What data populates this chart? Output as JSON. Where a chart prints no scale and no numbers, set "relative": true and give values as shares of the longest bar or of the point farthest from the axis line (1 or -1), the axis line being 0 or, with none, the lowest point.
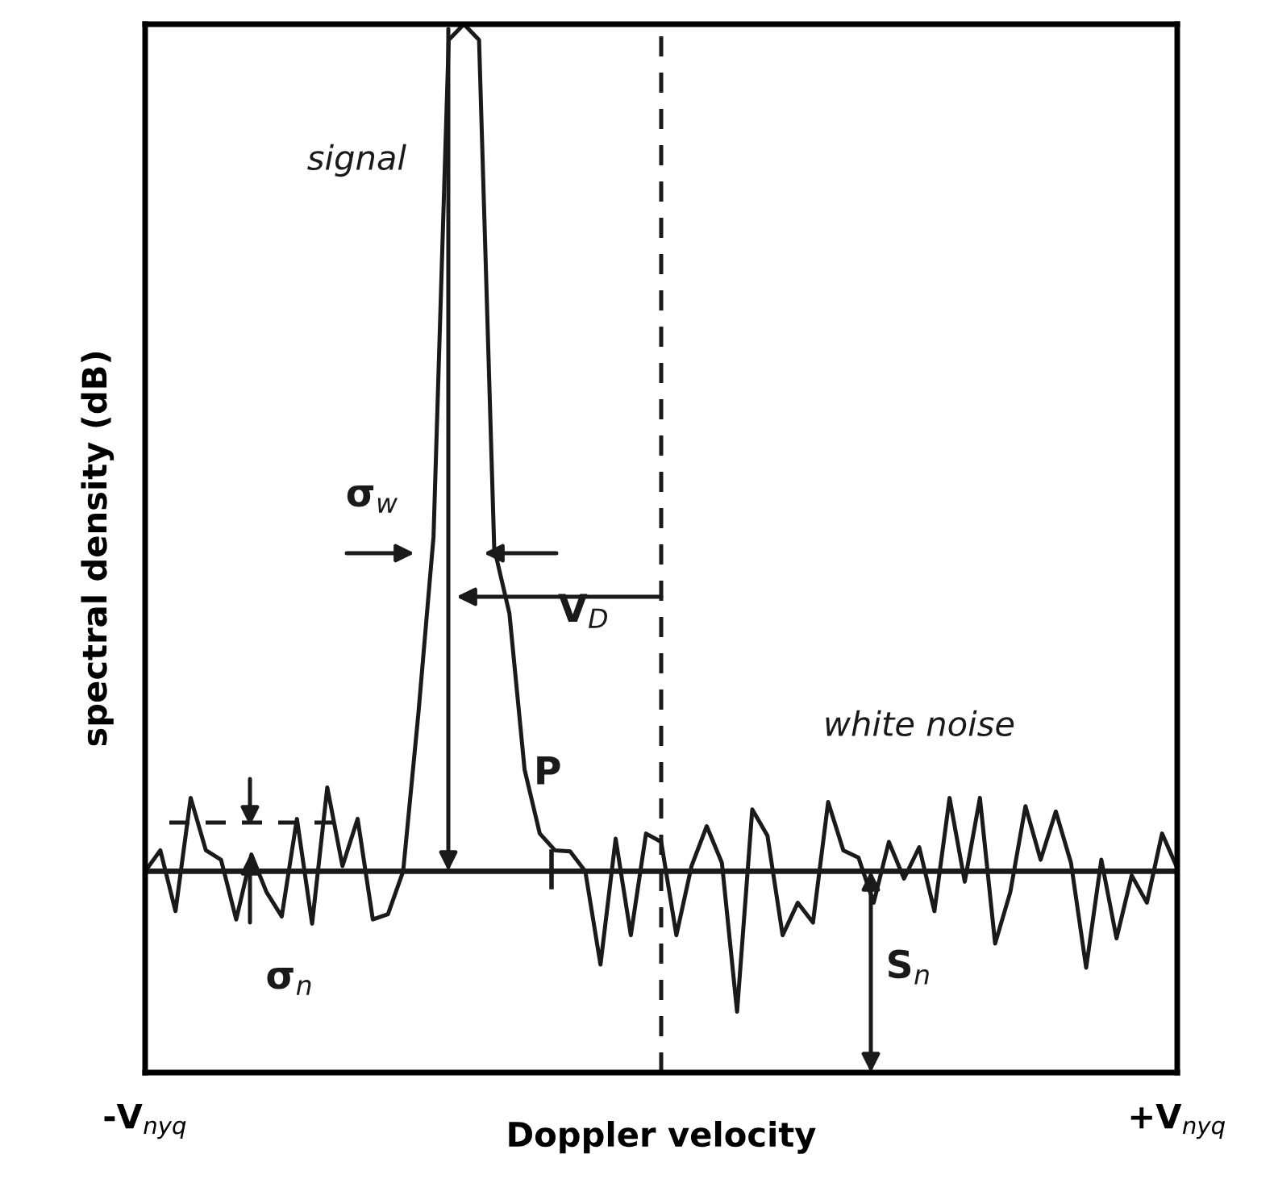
{
  "chart_data": {
    "type": "line",
    "relative": true,
    "xlabel": "Doppler velocity",
    "ylabel": "spectral density (dB)",
    "categories": [
      "-V$_{nyq}$",
      null,
      null,
      null,
      null,
      null,
      null,
      null,
      null,
      null,
      null,
      null,
      null,
      null,
      null,
      null,
      null,
      null,
      null,
      null,
      null,
      null,
      null,
      null,
      null,
      null,
      null,
      null,
      null,
      null,
      null,
      null,
      null,
      null,
      null,
      null,
      null,
      null,
      null,
      null,
      null,
      null,
      null,
      null,
      null,
      null,
      null,
      null,
      null,
      null,
      null,
      null,
      null,
      null,
      null,
      null,
      null,
      null,
      null,
      null,
      null,
      null,
      null,
      null,
      null,
      null,
      null,
      null,
      "+V$_{nyq}$"
    ],
    "legend": false,
    "marker": "none",
    "line_style": "solid",
    "series": [
      {
        "color": "#1a1a1a",
        "values": [
          0.192,
          0.212,
          0.154,
          0.262,
          0.212,
          0.203,
          0.146,
          0.208,
          0.172,
          0.149,
          0.242,
          0.142,
          0.272,
          0.197,
          0.242,
          0.146,
          0.151,
          0.192,
          0.342,
          0.511,
          0.985,
          1,
          0.985,
          0.5,
          0.438,
          0.289,
          0.228,
          0.212,
          0.211,
          0.192,
          0.103,
          0.223,
          0.131,
          0.228,
          0.22,
          0.131,
          0.197,
          0.235,
          0.2,
          0.058,
          0.251,
          0.226,
          0.131,
          0.162,
          0.143,
          0.258,
          0.212,
          0.205,
          0.162,
          0.22,
          0.185,
          0.215,
          0.154,
          0.262,
          0.182,
          0.262,
          0.123,
          0.172,
          0.254,
          0.203,
          0.249,
          0.2,
          0.1,
          0.203,
          0.128,
          0.188,
          0.162,
          0.228,
          0.195
        ]
      }
    ],
    "ref_lines": [
      {
        "axis": "y",
        "value": 0.192,
        "line_style": "solid",
        "color": "#1a1a1a"
      }
    ],
    "annotations": [
      "signal",
      "white noise",
      "σ$_{w}$",
      "V$_{D}$",
      "P",
      "σ$_{n}$",
      "S$_{n}$"
    ]
  }
}
